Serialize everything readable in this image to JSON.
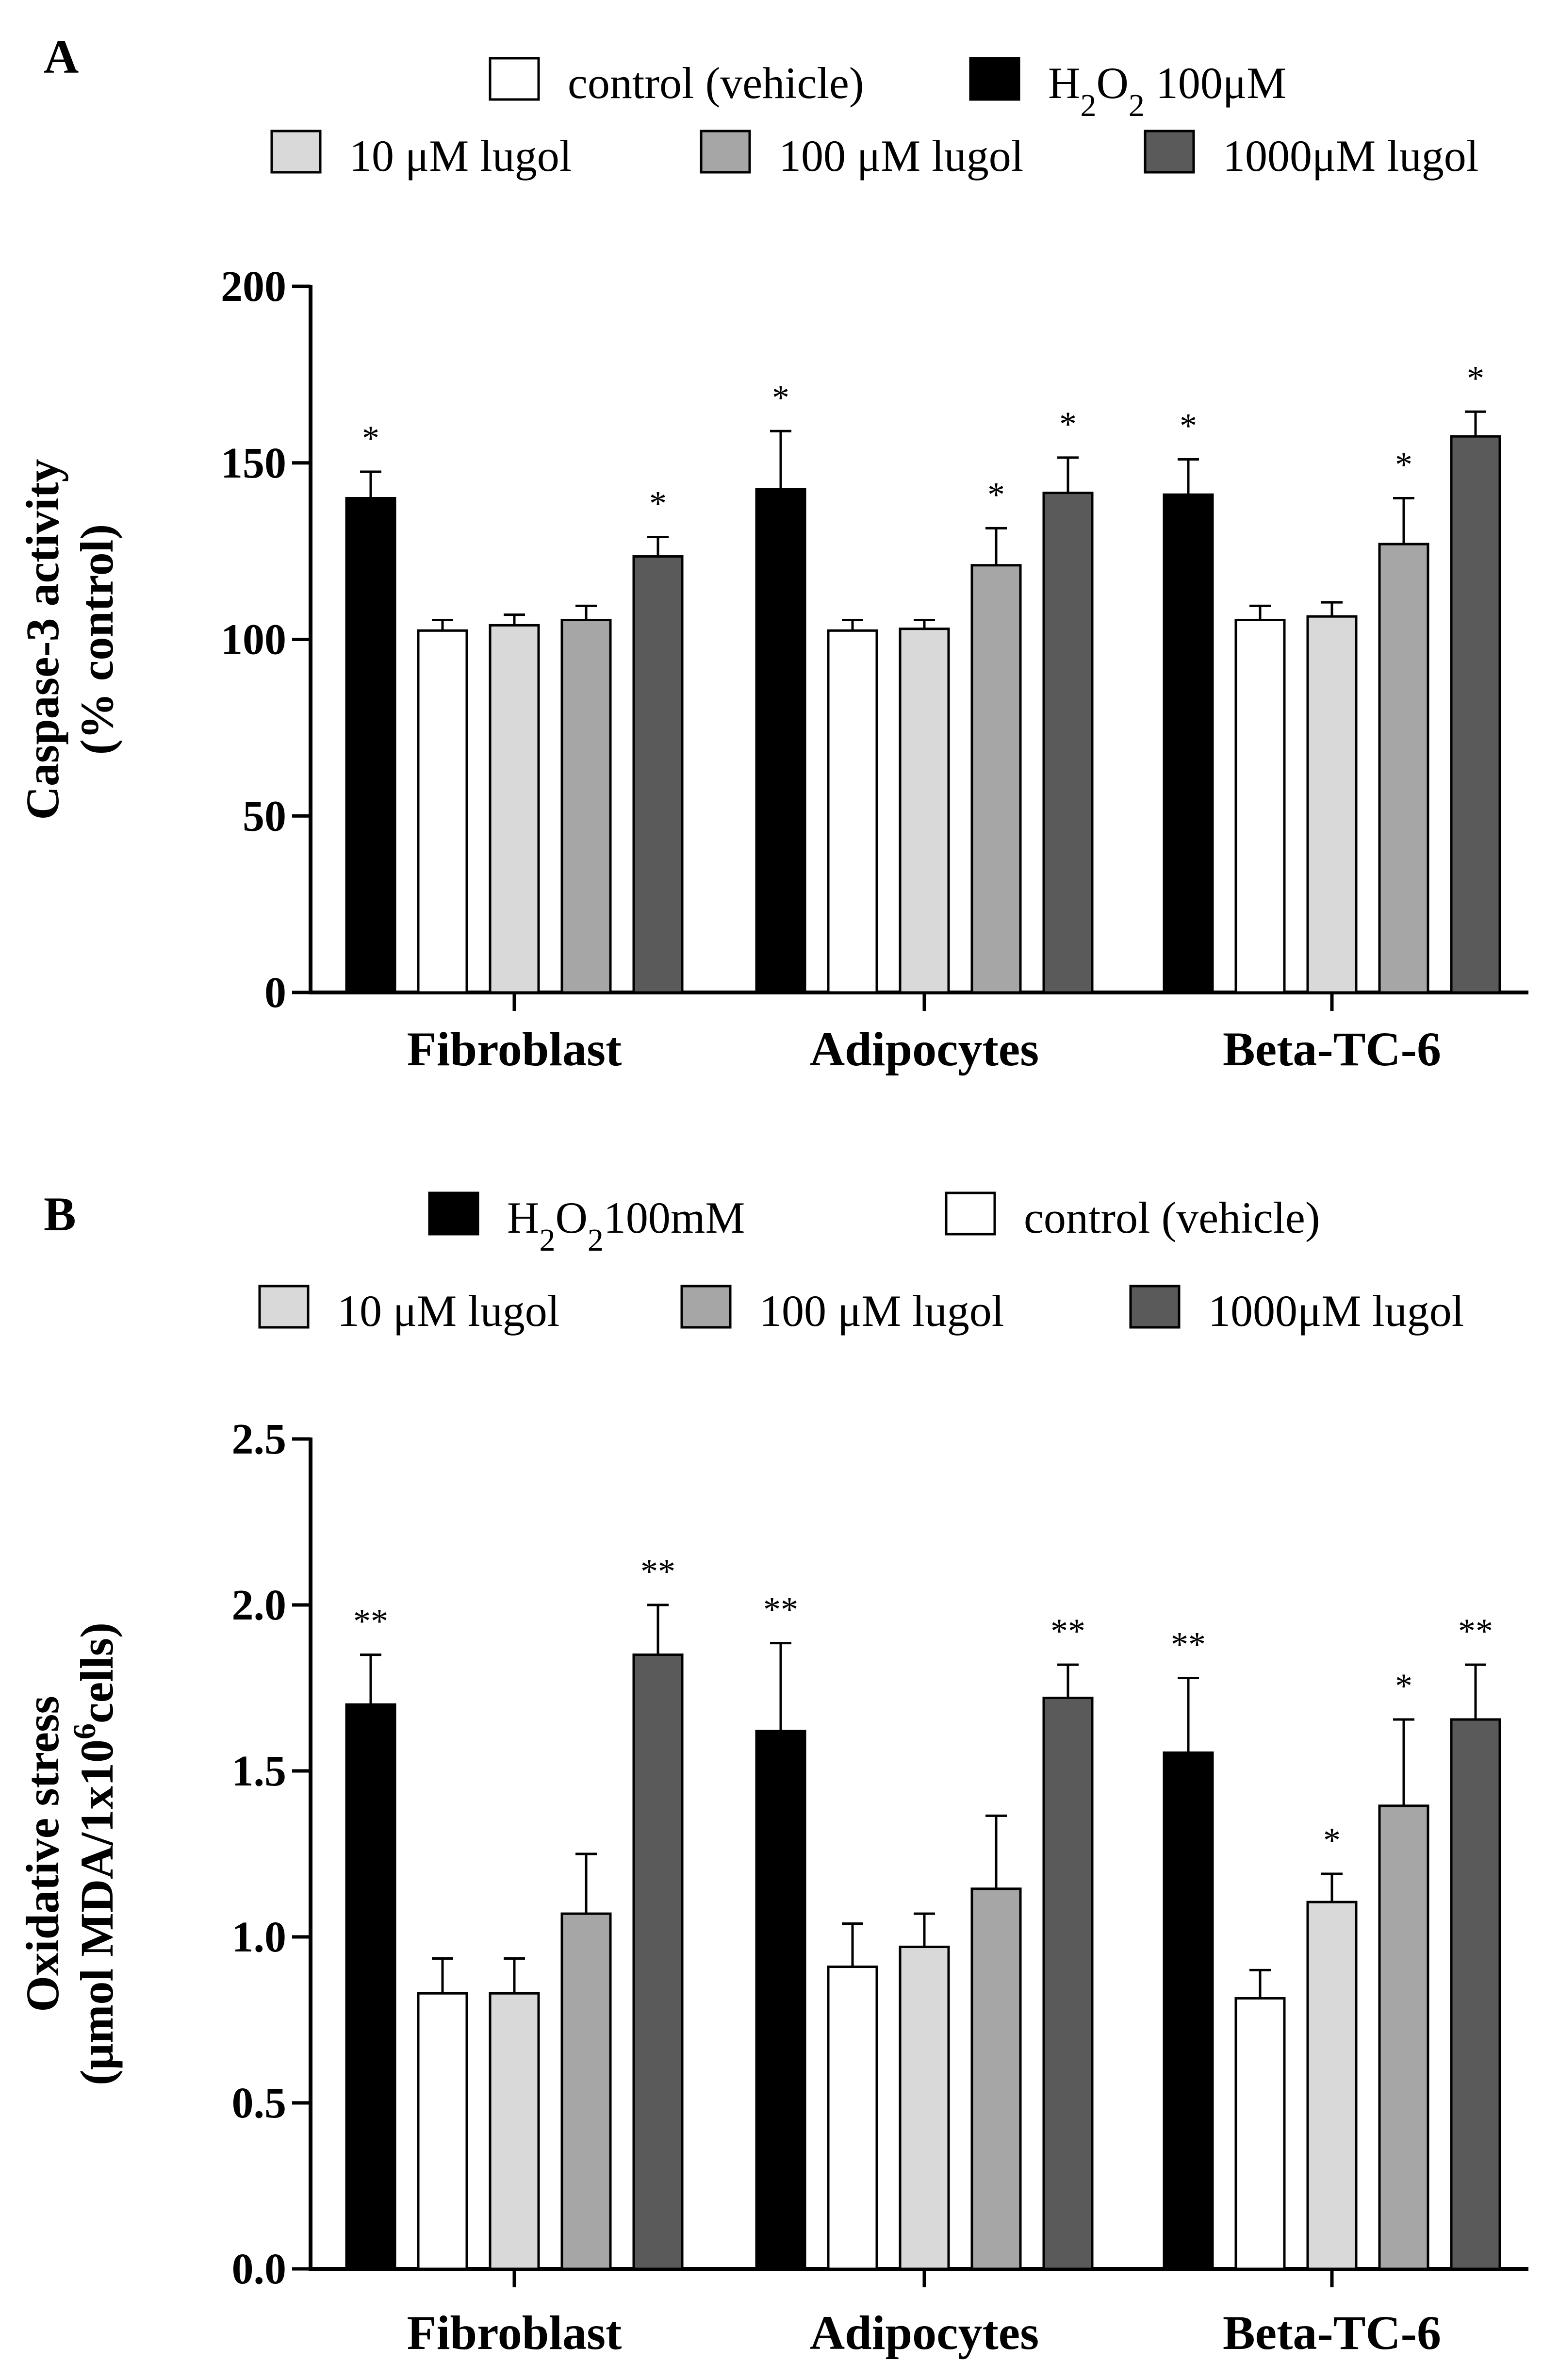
{
  "chart_data": [
    {
      "panel": "A",
      "type": "bar",
      "ylabel_line1": "Caspase-3 activity",
      "ylabel_line2": "(% control)",
      "ylim": [
        0,
        200
      ],
      "yticks": [
        "0",
        "50",
        "100",
        "150",
        "200"
      ],
      "categories": [
        "Fibroblast",
        "Adipocytes",
        "Beta-TC-6"
      ],
      "legend": [
        {
          "html": "control (vehicle)",
          "color": "#ffffff"
        },
        {
          "html": "H<tspan baseline-shift='sub' font-size='66'>2</tspan>O<tspan baseline-shift='sub' font-size='66'>2</tspan> 100μM",
          "color": "#000000"
        },
        {
          "html": "10 μM lugol",
          "color": "#d9d9d9"
        },
        {
          "html": "100 μM lugol",
          "color": "#a6a6a6"
        },
        {
          "html": "1000μM lugol",
          "color": "#5a5a5a"
        }
      ],
      "series": [
        {
          "name": "H2O2 100μM",
          "color": "#000000",
          "values": [
            140,
            142.5,
            141
          ],
          "errors": [
            7.5,
            16.5,
            10
          ],
          "sig": [
            "*",
            "*",
            "*"
          ]
        },
        {
          "name": "control (vehicle)",
          "color": "#ffffff",
          "values": [
            102.5,
            102.5,
            105.5
          ],
          "errors": [
            3,
            3,
            4
          ],
          "sig": [
            "",
            "",
            ""
          ]
        },
        {
          "name": "10 μM lugol",
          "color": "#d9d9d9",
          "values": [
            104,
            103,
            106.5
          ],
          "errors": [
            3,
            2.5,
            4
          ],
          "sig": [
            "",
            "",
            ""
          ]
        },
        {
          "name": "100 μM lugol",
          "color": "#a6a6a6",
          "values": [
            105.5,
            121,
            127
          ],
          "errors": [
            4,
            10.5,
            13
          ],
          "sig": [
            "",
            "*",
            "*"
          ]
        },
        {
          "name": "1000μM lugol",
          "color": "#5a5a5a",
          "values": [
            123.5,
            141.5,
            157.5
          ],
          "errors": [
            5.5,
            10,
            7
          ],
          "sig": [
            "*",
            "*",
            "*"
          ]
        }
      ]
    },
    {
      "panel": "B",
      "type": "bar",
      "ylabel_line1": "Oxidative stress",
      "ylabel_line2": "(μmol MDA/1x10<tspan baseline-shift='super' font-size='66'>6</tspan>cells)",
      "ylim": [
        0,
        2.5
      ],
      "yticks": [
        "0.0",
        "0.5",
        "1.0",
        "1.5",
        "2.0",
        "2.5"
      ],
      "categories": [
        "Fibroblast",
        "Adipocytes",
        "Beta-TC-6"
      ],
      "legend": [
        {
          "html": "H<tspan baseline-shift='sub' font-size='66'>2</tspan>O<tspan baseline-shift='sub' font-size='66'>2</tspan>100mM",
          "color": "#000000"
        },
        {
          "html": "control (vehicle)",
          "color": "#ffffff"
        },
        {
          "html": "10 μM lugol",
          "color": "#d9d9d9"
        },
        {
          "html": "100 μM lugol",
          "color": "#a6a6a6"
        },
        {
          "html": "1000μM lugol",
          "color": "#5a5a5a"
        }
      ],
      "series": [
        {
          "name": "H2O2 100mM",
          "color": "#000000",
          "values": [
            1.7,
            1.62,
            1.555
          ],
          "errors": [
            0.15,
            0.265,
            0.225
          ],
          "sig": [
            "**",
            "**",
            "**"
          ]
        },
        {
          "name": "control (vehicle)",
          "color": "#ffffff",
          "values": [
            0.83,
            0.91,
            0.815
          ],
          "errors": [
            0.105,
            0.13,
            0.085
          ],
          "sig": [
            "",
            "",
            ""
          ]
        },
        {
          "name": "10 μM lugol",
          "color": "#d9d9d9",
          "values": [
            0.83,
            0.97,
            1.105
          ],
          "errors": [
            0.105,
            0.1,
            0.085
          ],
          "sig": [
            "",
            "",
            "*"
          ]
        },
        {
          "name": "100 μM lugol",
          "color": "#a6a6a6",
          "values": [
            1.07,
            1.145,
            1.395
          ],
          "errors": [
            0.18,
            0.22,
            0.26
          ],
          "sig": [
            "",
            "",
            "*"
          ]
        },
        {
          "name": "1000μM lugol",
          "color": "#5a5a5a",
          "values": [
            1.85,
            1.72,
            1.655
          ],
          "errors": [
            0.15,
            0.1,
            0.165
          ],
          "sig": [
            "**",
            "**",
            "**"
          ]
        }
      ]
    }
  ]
}
